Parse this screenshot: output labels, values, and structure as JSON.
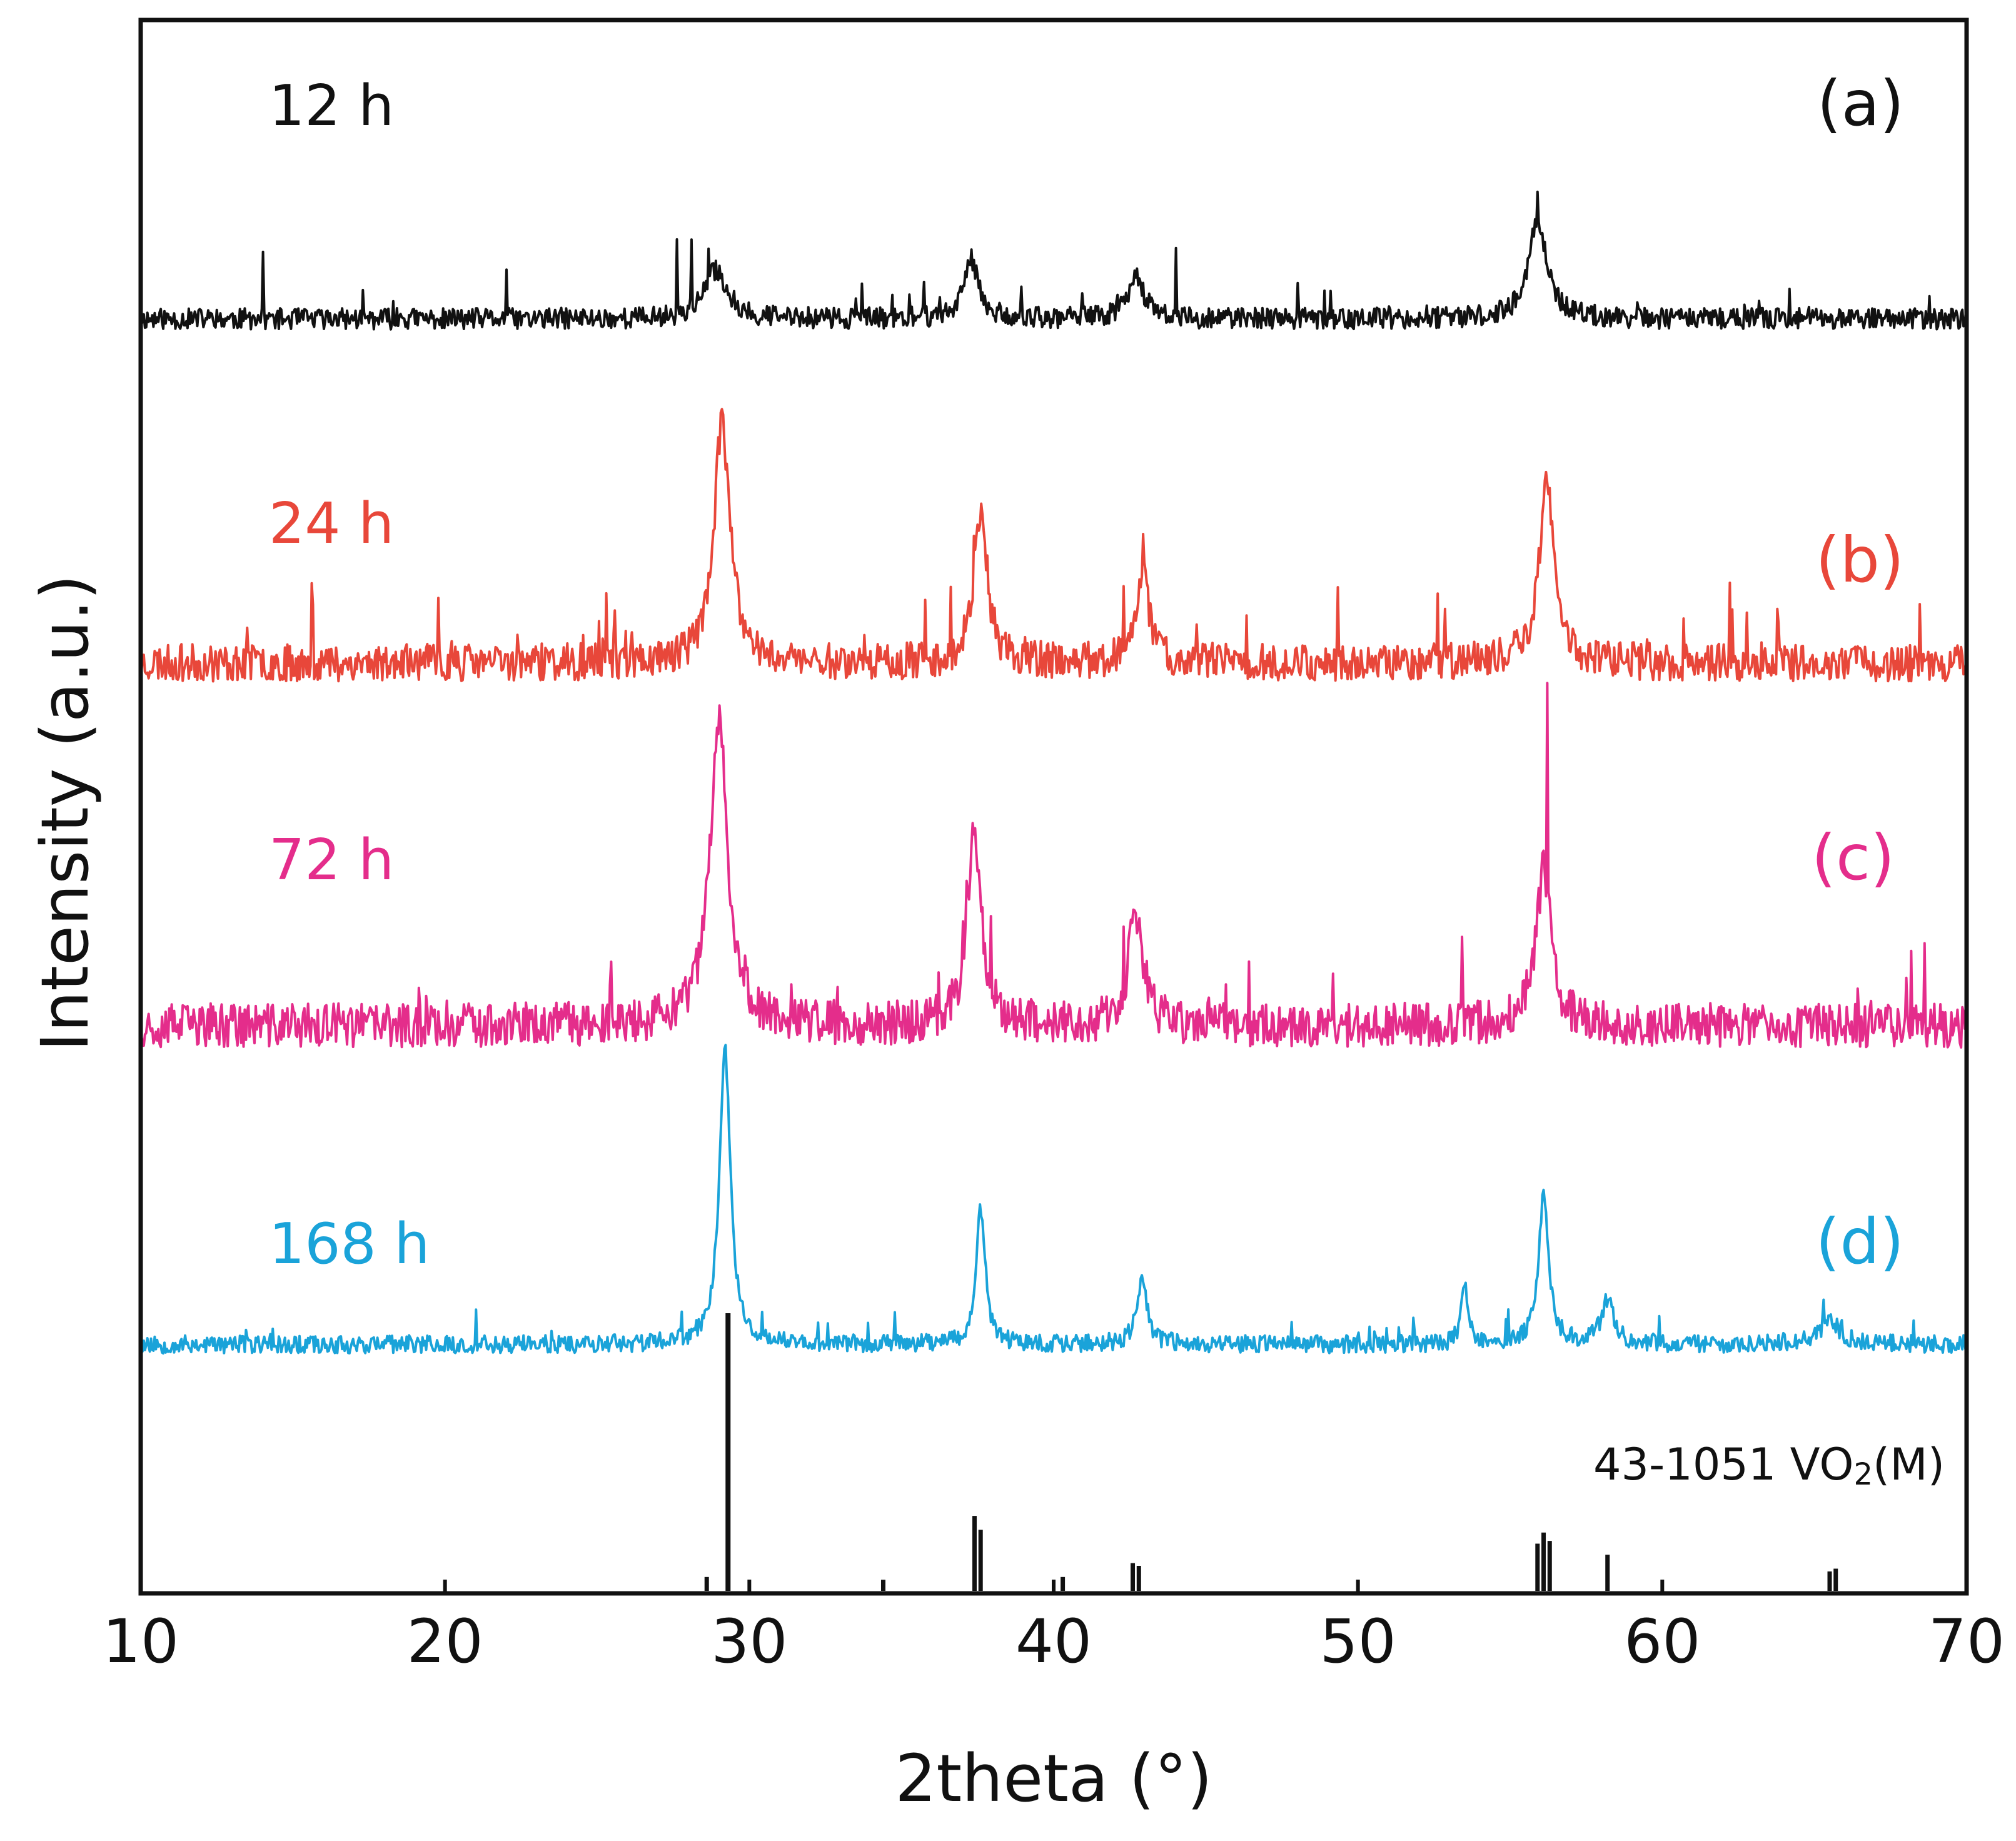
{
  "chart_data": {
    "type": "line",
    "title": "",
    "xlabel": "2theta (°)",
    "ylabel": "Intensity (a.u.)",
    "xlim": [
      10,
      70
    ],
    "xticks": [
      "10",
      "20",
      "30",
      "40",
      "50",
      "60",
      "70"
    ],
    "yticks_shown": false,
    "grid": false,
    "legend": "inline labels at left and right of each trace",
    "series": [
      {
        "id": "a",
        "name": "12 h",
        "panel": "(a)",
        "color": "#111111",
        "baseline": 0.86,
        "noise": 0.13,
        "seed": 11,
        "peaks": [
          {
            "x": 28.9,
            "h": 0.3,
            "w": 0.45
          },
          {
            "x": 37.3,
            "h": 0.36,
            "w": 0.3
          },
          {
            "x": 42.7,
            "h": 0.28,
            "w": 0.3
          },
          {
            "x": 55.9,
            "h": 0.62,
            "w": 0.35
          }
        ],
        "spikes": [
          {
            "x": 14.0,
            "h": 0.45
          },
          {
            "x": 22.0,
            "h": 0.34
          },
          {
            "x": 27.6,
            "h": 0.44
          },
          {
            "x": 28.1,
            "h": 0.46
          },
          {
            "x": 44.0,
            "h": 0.42
          },
          {
            "x": 48.0,
            "h": 0.25
          }
        ]
      },
      {
        "id": "b",
        "name": "24 h",
        "panel": "(b)",
        "color": "#e8473a",
        "baseline": 0.0,
        "noise": 0.11,
        "seed": 23,
        "peaks": [
          {
            "x": 29.1,
            "h": 0.7,
            "w": 0.32
          },
          {
            "x": 37.6,
            "h": 0.45,
            "w": 0.26
          },
          {
            "x": 42.9,
            "h": 0.26,
            "w": 0.28
          },
          {
            "x": 56.2,
            "h": 0.52,
            "w": 0.3
          }
        ],
        "spikes": [
          {
            "x": 15.6,
            "h": 0.2
          },
          {
            "x": 52.6,
            "h": 0.22
          },
          {
            "x": 62.2,
            "h": 0.22
          }
        ]
      },
      {
        "id": "c",
        "name": "72 h",
        "panel": "(c)",
        "color": "#e42d8b",
        "baseline": 0.0,
        "noise": 0.12,
        "seed": 37,
        "peaks": [
          {
            "x": 29.0,
            "h": 0.82,
            "w": 0.35
          },
          {
            "x": 37.4,
            "h": 0.52,
            "w": 0.28
          },
          {
            "x": 42.7,
            "h": 0.3,
            "w": 0.28
          },
          {
            "x": 56.1,
            "h": 0.42,
            "w": 0.3
          }
        ],
        "spikes": [
          {
            "x": 56.2,
            "h": 0.62
          },
          {
            "x": 53.4,
            "h": 0.26
          },
          {
            "x": 68.6,
            "h": 0.28
          }
        ]
      },
      {
        "id": "d",
        "name": "168 h",
        "panel": "(d)",
        "color": "#1aa3d9",
        "baseline": 0.0,
        "noise": 0.06,
        "seed": 53,
        "peaks": [
          {
            "x": 29.2,
            "h": 0.98,
            "w": 0.22
          },
          {
            "x": 37.6,
            "h": 0.45,
            "w": 0.18
          },
          {
            "x": 42.9,
            "h": 0.22,
            "w": 0.2
          },
          {
            "x": 53.5,
            "h": 0.22,
            "w": 0.12
          },
          {
            "x": 56.1,
            "h": 0.5,
            "w": 0.2
          },
          {
            "x": 58.2,
            "h": 0.14,
            "w": 0.25
          },
          {
            "x": 65.5,
            "h": 0.08,
            "w": 0.4
          }
        ],
        "spikes": []
      }
    ],
    "reference": {
      "label_prefix": "43-1051 VO",
      "label_sub": "2",
      "label_suffix": "(M)",
      "color": "#111111",
      "lines": [
        {
          "x": 28.6,
          "h": 0.05
        },
        {
          "x": 29.3,
          "h": 1.0
        },
        {
          "x": 34.4,
          "h": 0.04
        },
        {
          "x": 37.4,
          "h": 0.27
        },
        {
          "x": 37.6,
          "h": 0.22
        },
        {
          "x": 40.3,
          "h": 0.05
        },
        {
          "x": 42.6,
          "h": 0.1
        },
        {
          "x": 42.8,
          "h": 0.09
        },
        {
          "x": 55.9,
          "h": 0.17
        },
        {
          "x": 56.1,
          "h": 0.21
        },
        {
          "x": 56.3,
          "h": 0.18
        },
        {
          "x": 58.2,
          "h": 0.13
        },
        {
          "x": 65.5,
          "h": 0.07
        },
        {
          "x": 65.7,
          "h": 0.08
        }
      ]
    }
  }
}
